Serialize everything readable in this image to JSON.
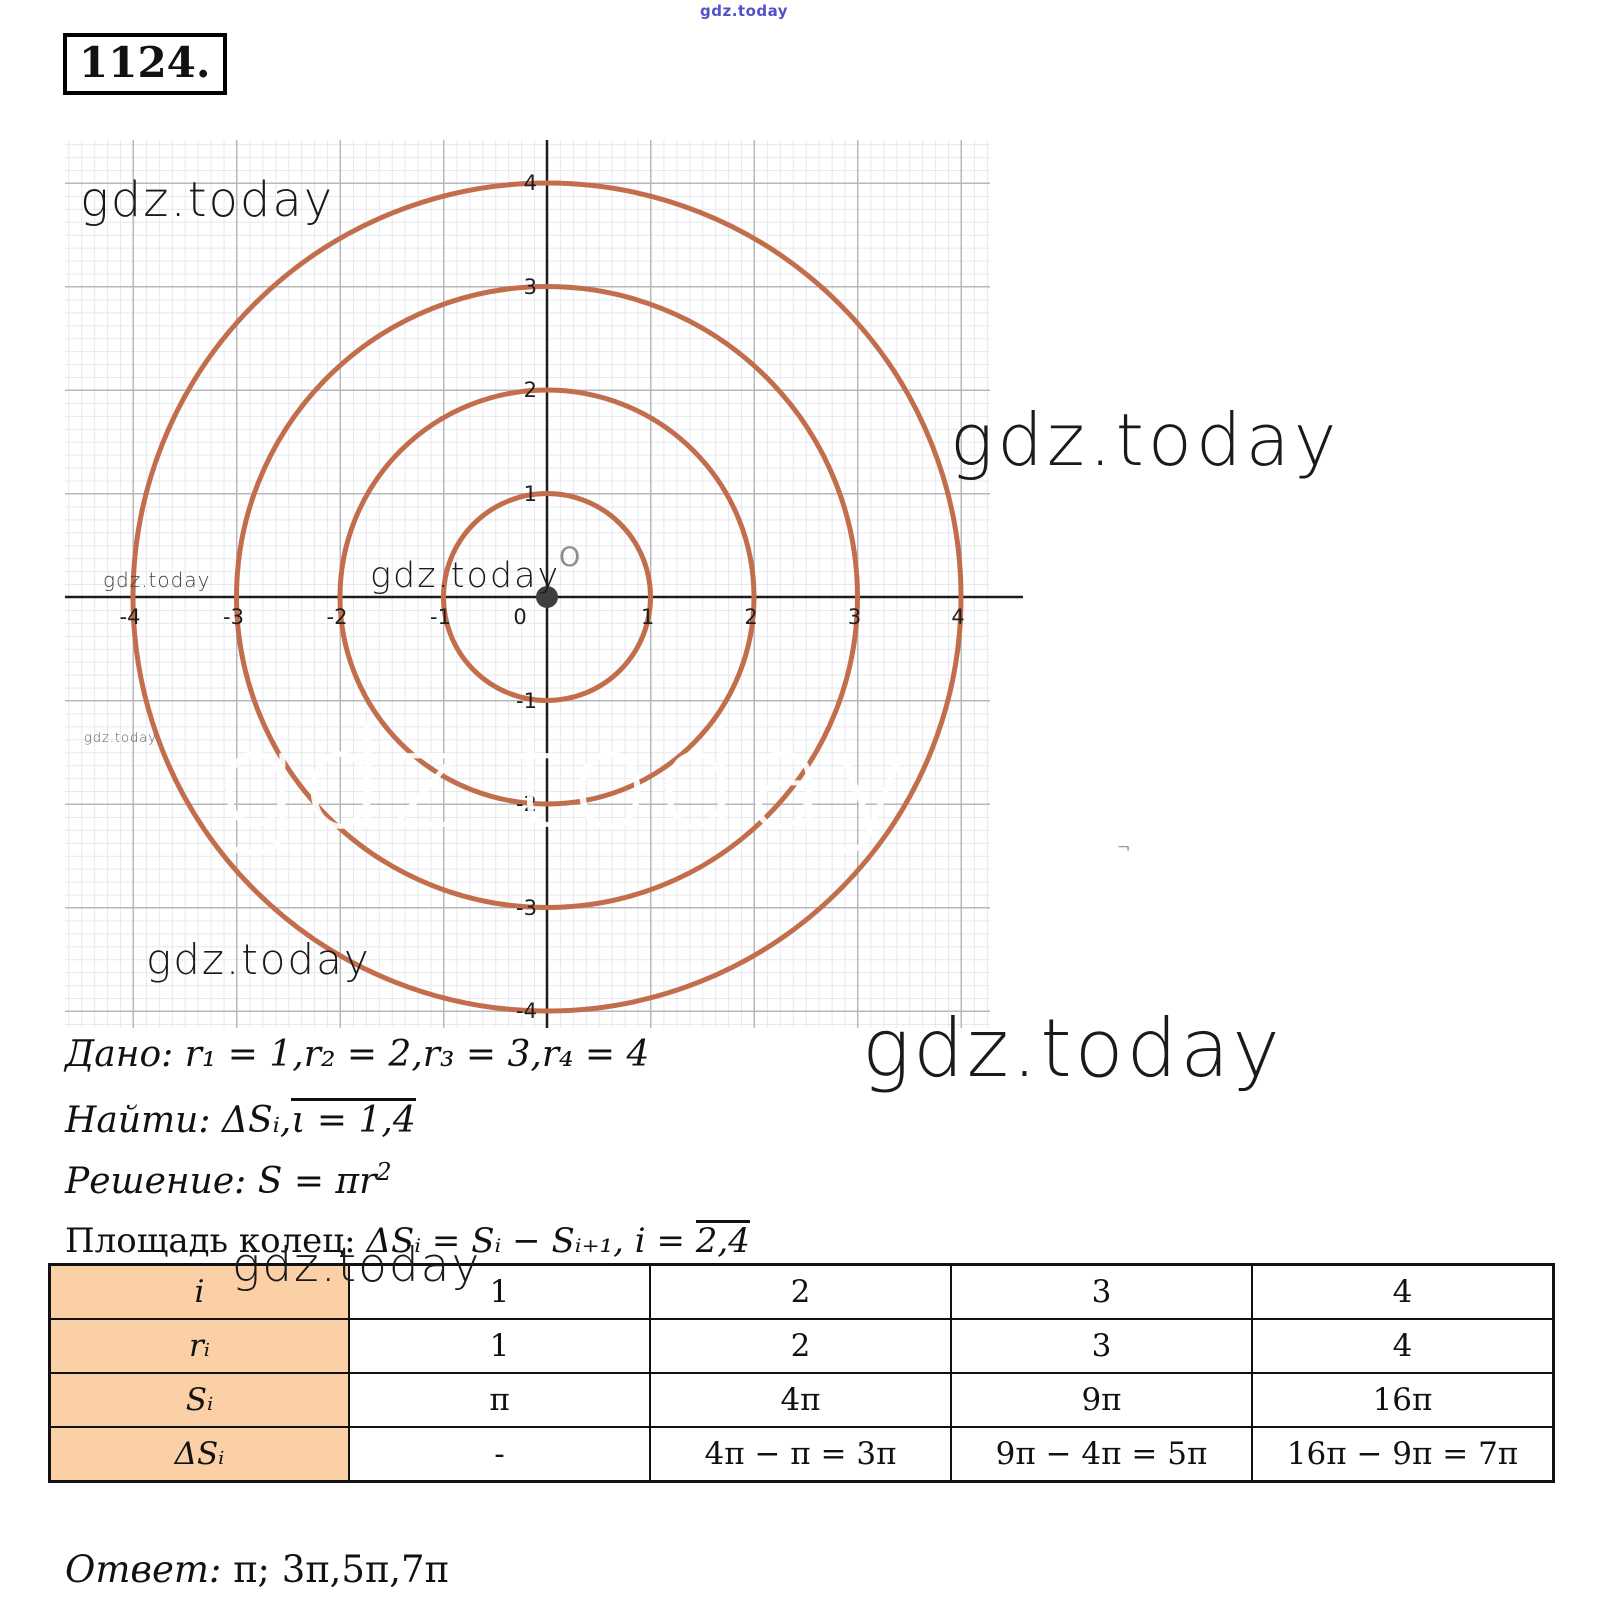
{
  "problem_number": "1124.",
  "watermarks": {
    "top": "gdz.today",
    "graph_top_left": "gdz.today",
    "right_large": "gdz.today",
    "axis_left_small": "gdz.today",
    "near_origin": "gdz.today",
    "tiny_left": "gdz.today",
    "bottom_left": "gdz.today",
    "bottom_right_large": "gdz.today",
    "table_overlay": "gdz.today",
    "white_over_circles": "gdz.today",
    "stray_mark": "¬"
  },
  "figure": {
    "type": "concentric-circles-on-grid",
    "circle_color": "#c26e4d",
    "radii": [
      1,
      2,
      3,
      4
    ],
    "x_ticks": [
      "-4",
      "-3",
      "-2",
      "-1",
      "0",
      "1",
      "2",
      "3",
      "4"
    ],
    "y_ticks": [
      "4",
      "3",
      "2",
      "1",
      "-1",
      "-2",
      "-3",
      "-4"
    ],
    "origin_label": "O"
  },
  "solution": {
    "given_label": "Дано:",
    "given_formula": "r₁ = 1,r₂ = 2,r₃ = 3,r₄ = 4",
    "find_label": "Найти:",
    "find_pre": "ΔSᵢ,",
    "find_overline": "ι = 1,4",
    "solve_label": "Решение:",
    "solve_formula": "S = πr",
    "solve_exp": "2",
    "area_label": "Площадь колец:",
    "area_pre": "ΔSᵢ = Sᵢ − Sᵢ₊₁, i = ",
    "area_overline": "2,4",
    "answer_label": "Ответ:",
    "answer_value": "π; 3π,5π,7π"
  },
  "table": {
    "header_bg": "#fbd0a6",
    "row_headers": [
      "i",
      "rᵢ",
      "Sᵢ",
      "ΔSᵢ"
    ],
    "rows": [
      [
        "1",
        "2",
        "3",
        "4"
      ],
      [
        "1",
        "2",
        "3",
        "4"
      ],
      [
        "π",
        "4π",
        "9π",
        "16π"
      ],
      [
        "-",
        "4π − π = 3π",
        "9π − 4π = 5π",
        "16π − 9π = 7π"
      ]
    ]
  }
}
